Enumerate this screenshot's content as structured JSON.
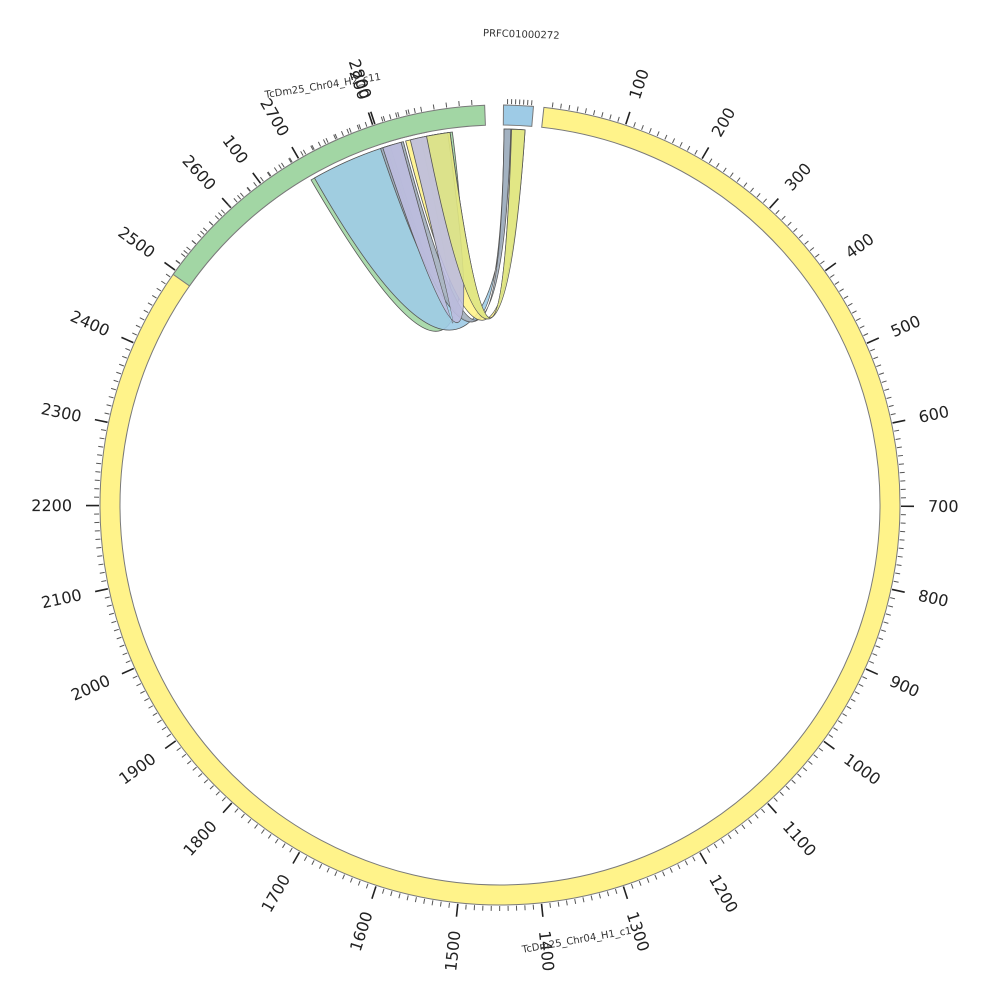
{
  "diagram": {
    "type": "circos",
    "colors": {
      "yellow": "#fff38a",
      "green": "#a2d6a4",
      "blue": "#9ecbe6",
      "lavender": "#bdbddf",
      "olive": "#dfe683",
      "slate": "#a2aebd",
      "outline": "#7a7a7a"
    },
    "segments": [
      {
        "name": "TcDm25_Chr04_H1_c1",
        "label": "TcDm25_Chr04_H1_c1",
        "length": 2860,
        "color": "yellow"
      },
      {
        "name": "TcDm25_Chr04_H2_c11",
        "label": "TcDm25_Chr04_H2_c11",
        "length": 290,
        "color": "green"
      },
      {
        "name": "PRFC01000272",
        "label": "PRFC01000272",
        "length": 75,
        "color": "blue"
      }
    ],
    "major_tick_labels": {
      "TcDm25_Chr04_H1_c1": [
        "100",
        "200",
        "300",
        "400",
        "500",
        "600",
        "700",
        "800",
        "900",
        "1000",
        "1100",
        "1200",
        "1300",
        "1400",
        "1500",
        "1600",
        "1700",
        "1800",
        "1900",
        "2000",
        "2100",
        "2200",
        "2300",
        "2400",
        "2500",
        "2600",
        "2700",
        "2800"
      ],
      "TcDm25_Chr04_H2_c11": [
        "100",
        "200"
      ]
    },
    "links": [
      {
        "from": "TcDm25_Chr04_H1_c1",
        "from_range": [
          2700,
          2810
        ],
        "to": "TcDm25_Chr04_H2_c11",
        "to_range": [
          235,
          262
        ],
        "color": "green"
      },
      {
        "from": "TcDm25_Chr04_H1_c1",
        "from_range": [
          2705,
          2805
        ],
        "to": "PRFC01000272",
        "to_range": [
          2,
          20
        ],
        "color": "blue"
      },
      {
        "from": "TcDm25_Chr04_H2_c11",
        "from_range": [
          200,
          220
        ],
        "to": "PRFC01000272",
        "to_range": [
          2,
          20
        ],
        "color": "slate"
      },
      {
        "from": "TcDm25_Chr04_H2_c11",
        "from_range": [
          222,
          260
        ],
        "to": "PRFC01000272",
        "to_range": [
          22,
          58
        ],
        "color": "yellow"
      },
      {
        "from": "TcDm25_Chr04_H2_c11",
        "from_range": [
          202,
          218
        ],
        "to": "TcDm25_Chr04_H2_c11",
        "to_range": [
          226,
          258
        ],
        "color": "lavender"
      },
      {
        "from": "PRFC01000272",
        "from_range": [
          22,
          58
        ],
        "to": "TcDm25_Chr04_H2_c11",
        "to_range": [
          240,
          260
        ],
        "color": "olive"
      }
    ]
  }
}
